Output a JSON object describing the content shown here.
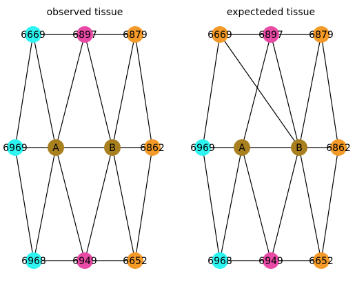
{
  "colors": {
    "cyan": "#2ef4f1",
    "magenta": "#e84aa6",
    "orange": "#f39a28",
    "olive": "#a9801f",
    "edge": "#000000"
  },
  "panels": [
    {
      "id": "observed",
      "title": "observed tissue",
      "nodes": [
        {
          "id": "6669",
          "label": "6669",
          "color": "cyan"
        },
        {
          "id": "6897",
          "label": "6897",
          "color": "magenta"
        },
        {
          "id": "6879",
          "label": "6879",
          "color": "orange"
        },
        {
          "id": "6969",
          "label": "6969",
          "color": "cyan"
        },
        {
          "id": "A",
          "label": "A",
          "color": "olive"
        },
        {
          "id": "B",
          "label": "B",
          "color": "olive"
        },
        {
          "id": "6862",
          "label": "6862",
          "color": "orange"
        },
        {
          "id": "6968",
          "label": "6968",
          "color": "cyan"
        },
        {
          "id": "6949",
          "label": "6949",
          "color": "magenta"
        },
        {
          "id": "6652",
          "label": "6652",
          "color": "orange"
        }
      ],
      "edges": [
        [
          "6669",
          "6897"
        ],
        [
          "6897",
          "6879"
        ],
        [
          "6969",
          "A"
        ],
        [
          "A",
          "B"
        ],
        [
          "B",
          "6862"
        ],
        [
          "6968",
          "6949"
        ],
        [
          "6949",
          "6652"
        ],
        [
          "6669",
          "6969"
        ],
        [
          "6669",
          "A"
        ],
        [
          "6897",
          "A"
        ],
        [
          "6897",
          "B"
        ],
        [
          "6879",
          "B"
        ],
        [
          "6879",
          "6862"
        ],
        [
          "6969",
          "6968"
        ],
        [
          "A",
          "6968"
        ],
        [
          "A",
          "6949"
        ],
        [
          "B",
          "6949"
        ],
        [
          "B",
          "6652"
        ],
        [
          "6862",
          "6652"
        ]
      ]
    },
    {
      "id": "expected",
      "title": "expecteded tissue",
      "nodes": [
        {
          "id": "6669",
          "label": "6669",
          "color": "orange"
        },
        {
          "id": "6897",
          "label": "6897",
          "color": "magenta"
        },
        {
          "id": "6879",
          "label": "6879",
          "color": "orange"
        },
        {
          "id": "6969",
          "label": "6969",
          "color": "cyan"
        },
        {
          "id": "A",
          "label": "A",
          "color": "olive"
        },
        {
          "id": "B",
          "label": "B",
          "color": "olive"
        },
        {
          "id": "6862",
          "label": "6862",
          "color": "orange"
        },
        {
          "id": "6968",
          "label": "6968",
          "color": "cyan"
        },
        {
          "id": "6949",
          "label": "6949",
          "color": "magenta"
        },
        {
          "id": "6652",
          "label": "6652",
          "color": "orange"
        }
      ],
      "edges": [
        [
          "6669",
          "6897"
        ],
        [
          "6897",
          "6879"
        ],
        [
          "6969",
          "A"
        ],
        [
          "A",
          "B"
        ],
        [
          "B",
          "6862"
        ],
        [
          "6968",
          "6949"
        ],
        [
          "6949",
          "6652"
        ],
        [
          "6669",
          "6969"
        ],
        [
          "6669",
          "B"
        ],
        [
          "6897",
          "A"
        ],
        [
          "6897",
          "B"
        ],
        [
          "6879",
          "B"
        ],
        [
          "6879",
          "6862"
        ],
        [
          "6969",
          "6968"
        ],
        [
          "A",
          "6968"
        ],
        [
          "A",
          "6949"
        ],
        [
          "B",
          "6949"
        ],
        [
          "B",
          "6652"
        ],
        [
          "6862",
          "6652"
        ]
      ]
    }
  ]
}
